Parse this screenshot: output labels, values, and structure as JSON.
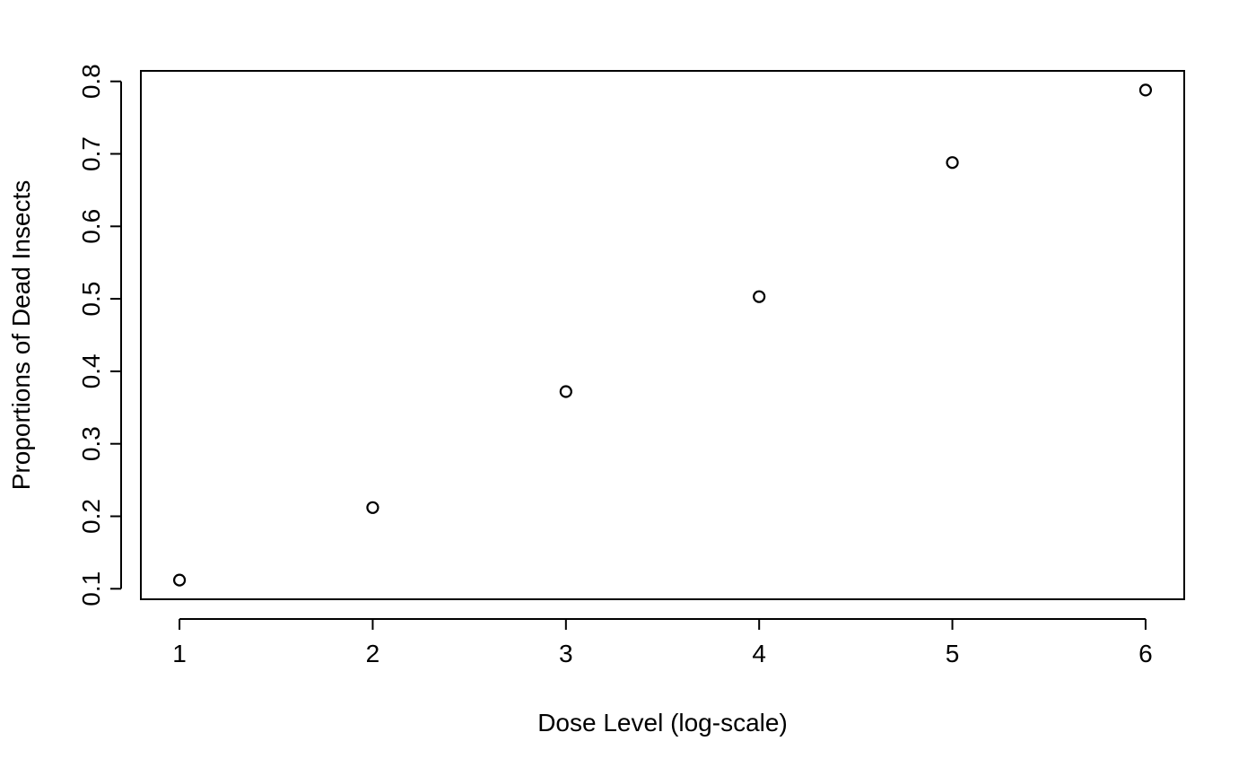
{
  "chart_data": {
    "type": "scatter",
    "title": "",
    "xlabel": "Dose Level (log-scale)",
    "ylabel": "Proportions of Dead Insects",
    "x": [
      1,
      2,
      3,
      4,
      5,
      6
    ],
    "y": [
      0.112,
      0.212,
      0.372,
      0.503,
      0.688,
      0.788
    ],
    "xlim": [
      0.8,
      6.2
    ],
    "ylim": [
      0.0855,
      0.8145
    ],
    "x_ticks": [
      1,
      2,
      3,
      4,
      5,
      6
    ],
    "x_tick_labels": [
      "1",
      "2",
      "3",
      "4",
      "5",
      "6"
    ],
    "y_ticks": [
      0.1,
      0.2,
      0.3,
      0.4,
      0.5,
      0.6,
      0.7,
      0.8
    ],
    "y_tick_labels": [
      "0.1",
      "0.2",
      "0.3",
      "0.4",
      "0.5",
      "0.6",
      "0.7",
      "0.8"
    ],
    "marker": "open-circle",
    "grid": false,
    "legend": "none",
    "colors": {
      "marker": "#000000",
      "axis": "#000000",
      "background": "#ffffff"
    }
  }
}
